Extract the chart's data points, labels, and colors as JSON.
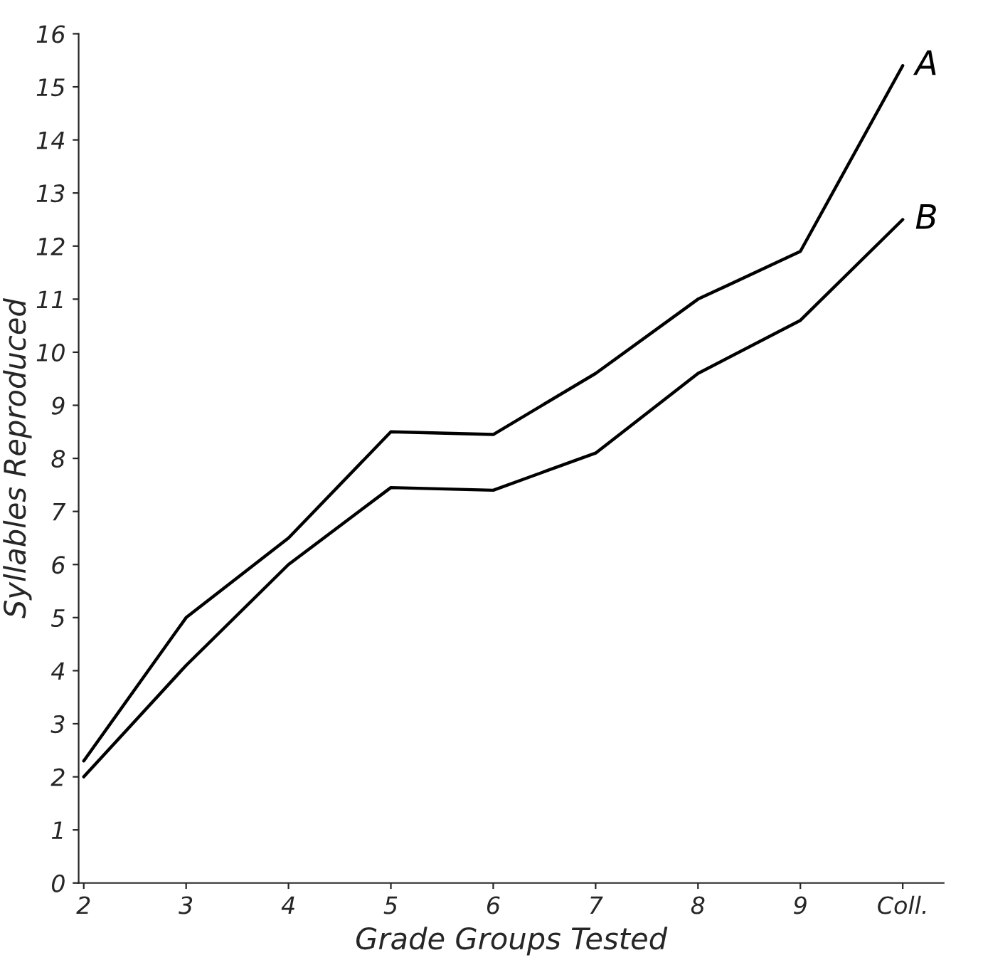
{
  "chart_data": {
    "type": "line",
    "xlabel": "Grade Groups Tested",
    "ylabel": "Syllables Reproduced",
    "categories": [
      "2",
      "3",
      "4",
      "5",
      "6",
      "7",
      "8",
      "9",
      "Coll."
    ],
    "series": [
      {
        "name": "A",
        "color": "#000000",
        "values": [
          2.3,
          5.0,
          6.5,
          8.5,
          8.45,
          9.6,
          11.0,
          11.9,
          15.4
        ]
      },
      {
        "name": "B",
        "color": "#000000",
        "values": [
          2.0,
          4.1,
          6.0,
          7.45,
          7.4,
          8.1,
          9.6,
          10.6,
          12.5
        ]
      }
    ],
    "ylim": [
      0,
      16
    ],
    "yticks": [
      0,
      1,
      2,
      3,
      4,
      5,
      6,
      7,
      8,
      9,
      10,
      11,
      12,
      13,
      14,
      15,
      16
    ],
    "grid": false,
    "legend": false,
    "marker": "none",
    "line_style": "solid"
  }
}
